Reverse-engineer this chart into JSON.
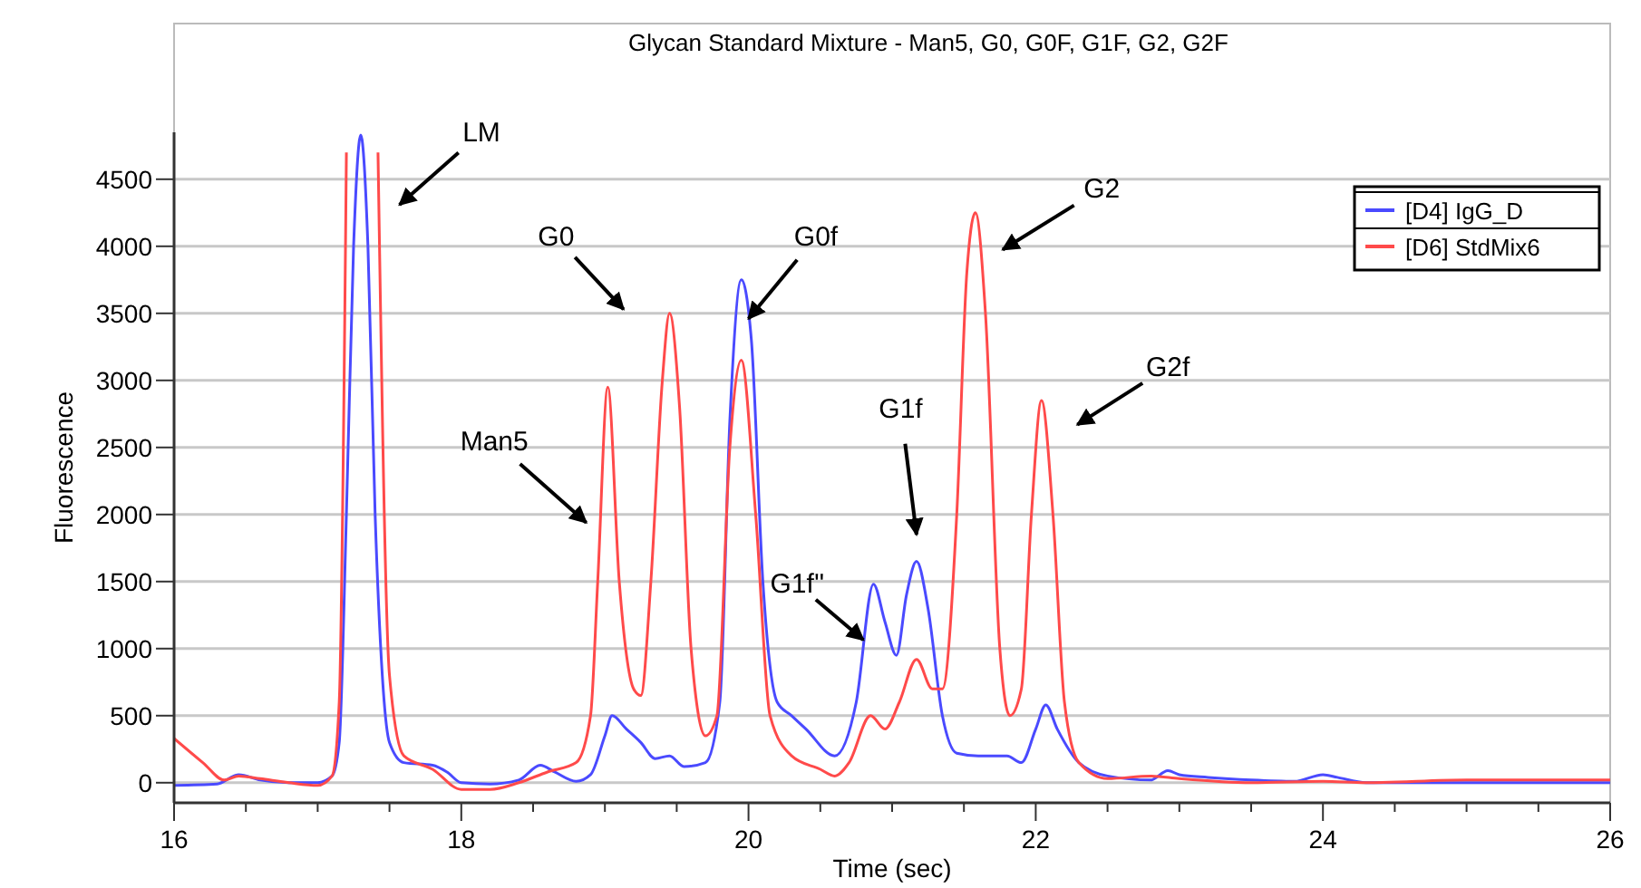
{
  "chart_data": {
    "type": "line",
    "title": "Glycan Standard Mixture - Man5, G0, G0F, G1F, G2, G2F",
    "xlabel": "Time (sec)",
    "ylabel": "Fluorescence",
    "xlim": [
      16,
      26
    ],
    "ylim": [
      -150,
      4850
    ],
    "xticks": [
      16,
      {
        "value": 16.5,
        "label": null
      },
      {
        "value": 17,
        "label": null
      },
      {
        "value": 17.5,
        "label": null
      },
      18,
      {
        "value": 18.5,
        "label": null
      },
      {
        "value": 19,
        "label": null
      },
      {
        "value": 19.5,
        "label": null
      },
      20,
      {
        "value": 20.5,
        "label": null
      },
      {
        "value": 21,
        "label": null
      },
      {
        "value": 21.5,
        "label": null
      },
      22,
      {
        "value": 22.5,
        "label": null
      },
      {
        "value": 23,
        "label": null
      },
      {
        "value": 23.5,
        "label": null
      },
      24,
      {
        "value": 24.5,
        "label": null
      },
      {
        "value": 25,
        "label": null
      },
      {
        "value": 25.5,
        "label": null
      },
      26
    ],
    "yticks": [
      0,
      500,
      1000,
      1500,
      2000,
      2500,
      3000,
      3500,
      4000,
      4500
    ],
    "grid": "y",
    "legend": "top right",
    "marker": "none",
    "line_style": "solid",
    "series": [
      {
        "name": "[D4] IgG_D",
        "color": "#4a4aff",
        "x": [
          16,
          16.3,
          16.45,
          16.6,
          16.8,
          17,
          17.1,
          17.15,
          17.2,
          17.25,
          17.3,
          17.35,
          17.4,
          17.45,
          17.5,
          17.6,
          17.8,
          17.9,
          18,
          18.2,
          18.4,
          18.55,
          18.65,
          18.8,
          18.9,
          19,
          19.05,
          19.15,
          19.25,
          19.35,
          19.45,
          19.55,
          19.7,
          19.8,
          19.87,
          19.95,
          20.02,
          20.1,
          20.2,
          20.3,
          20.4,
          20.6,
          20.75,
          20.87,
          20.95,
          21.03,
          21.1,
          21.17,
          21.25,
          21.35,
          21.45,
          21.6,
          21.8,
          21.9,
          22,
          22.07,
          22.15,
          22.3,
          22.5,
          22.8,
          22.92,
          23,
          23.2,
          23.5,
          23.8,
          24,
          24.1,
          24.3,
          26
        ],
        "values": [
          -20,
          -10,
          60,
          20,
          0,
          0,
          50,
          300,
          2000,
          4000,
          4830,
          4000,
          2000,
          800,
          300,
          150,
          130,
          80,
          0,
          -10,
          20,
          130,
          80,
          10,
          60,
          350,
          500,
          400,
          300,
          180,
          200,
          120,
          150,
          600,
          2700,
          3750,
          3300,
          1500,
          600,
          500,
          400,
          200,
          600,
          1480,
          1200,
          950,
          1400,
          1650,
          1300,
          500,
          220,
          200,
          200,
          150,
          400,
          580,
          400,
          150,
          50,
          20,
          90,
          60,
          40,
          20,
          10,
          60,
          40,
          0,
          0
        ]
      },
      {
        "name": "[D6] StdMix6",
        "color": "#ff4a4a",
        "x": [
          16,
          16.2,
          16.35,
          16.45,
          16.6,
          16.8,
          17,
          17.1,
          17.15,
          17.2,
          17.31,
          17.42,
          17.5,
          17.6,
          17.8,
          18,
          18.2,
          18.4,
          18.6,
          18.8,
          18.9,
          18.95,
          19.02,
          19.1,
          19.2,
          19.25,
          19.32,
          19.4,
          19.45,
          19.52,
          19.6,
          19.7,
          19.78,
          19.87,
          19.95,
          20.05,
          20.15,
          20.3,
          20.5,
          20.6,
          20.7,
          20.85,
          20.95,
          21.05,
          21.17,
          21.28,
          21.35,
          21.45,
          21.52,
          21.58,
          21.65,
          21.75,
          21.82,
          21.9,
          21.97,
          22.04,
          22.12,
          22.2,
          22.3,
          22.5,
          22.8,
          23,
          23.5,
          24,
          24.3,
          25,
          26
        ],
        "values": [
          330,
          150,
          20,
          50,
          30,
          0,
          -20,
          50,
          600,
          4700,
          null,
          4700,
          800,
          200,
          100,
          -50,
          -50,
          0,
          80,
          150,
          500,
          1500,
          2950,
          1500,
          700,
          650,
          1500,
          3000,
          3500,
          2800,
          1000,
          350,
          500,
          2500,
          3150,
          2000,
          500,
          200,
          100,
          50,
          150,
          500,
          400,
          600,
          920,
          700,
          700,
          2000,
          3800,
          4250,
          3500,
          1000,
          500,
          700,
          2000,
          2850,
          2000,
          600,
          150,
          30,
          50,
          30,
          0,
          10,
          0,
          20,
          20
        ]
      }
    ],
    "annotations": [
      "LM",
      "G0",
      "Man5",
      "G0f",
      "G1f''",
      "G1f",
      "G2",
      "G2f"
    ]
  }
}
